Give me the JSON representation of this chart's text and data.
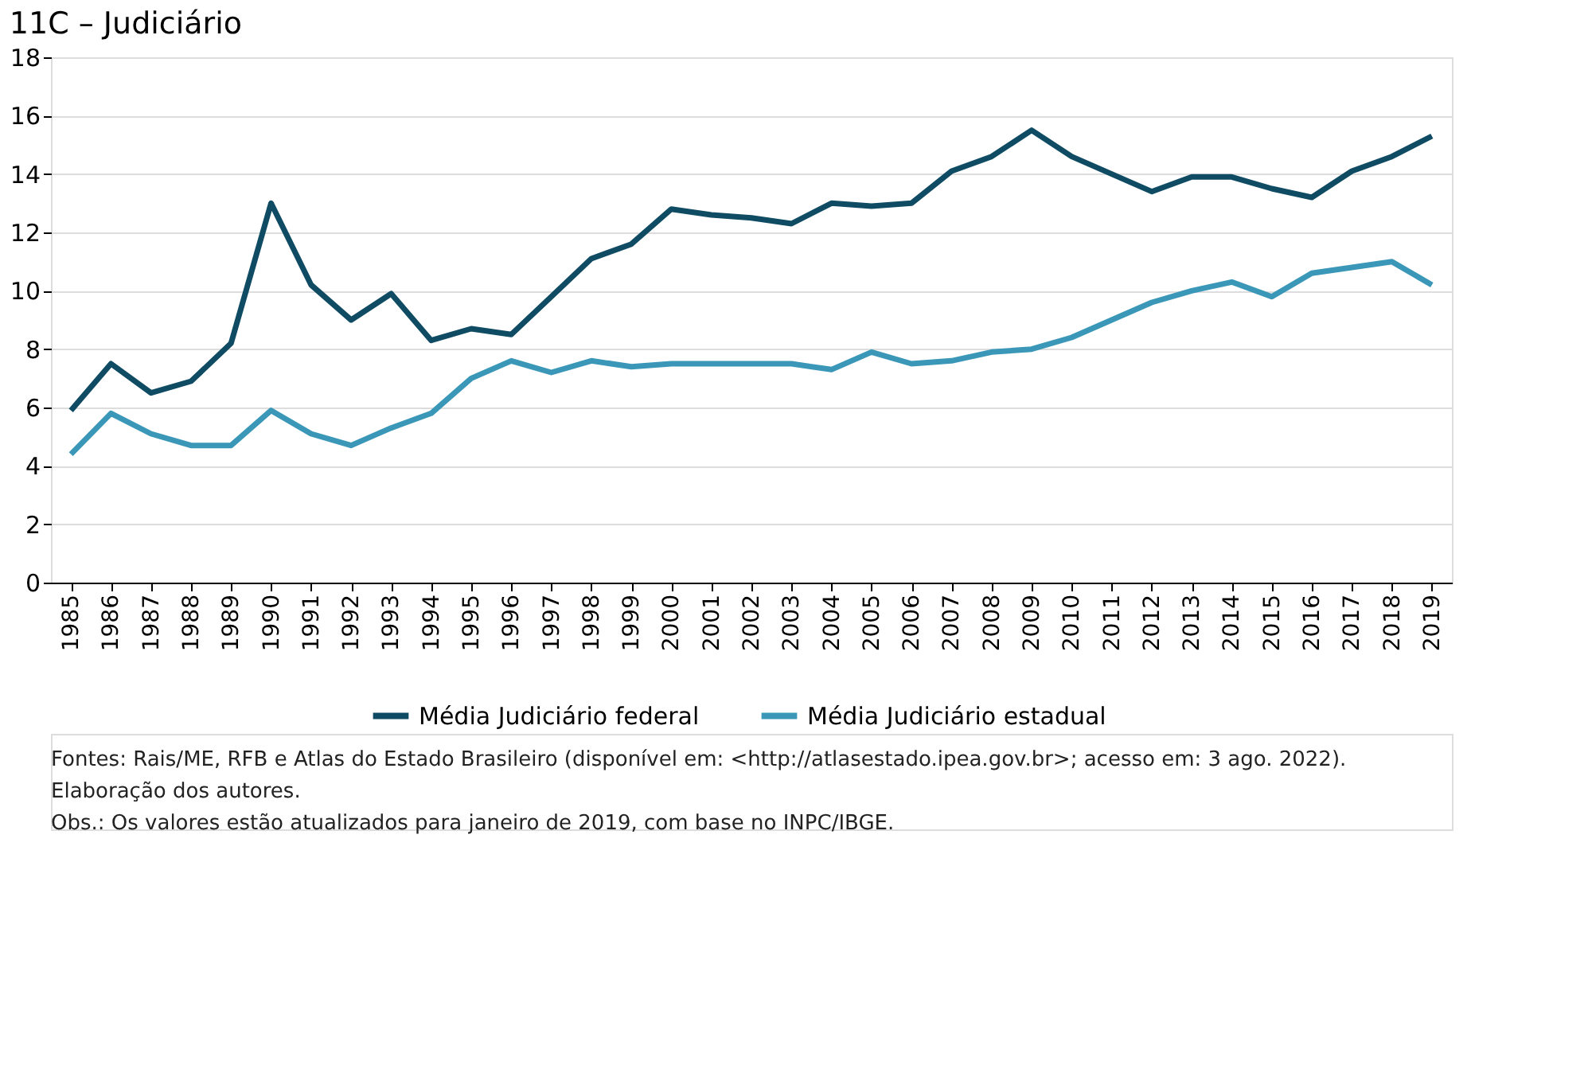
{
  "chart_data": {
    "type": "line",
    "title": "11C – Judiciário",
    "categories": [
      "1985",
      "1986",
      "1987",
      "1988",
      "1989",
      "1990",
      "1991",
      "1992",
      "1993",
      "1994",
      "1995",
      "1996",
      "1997",
      "1998",
      "1999",
      "2000",
      "2001",
      "2002",
      "2003",
      "2004",
      "2005",
      "2006",
      "2007",
      "2008",
      "2009",
      "2010",
      "2011",
      "2012",
      "2013",
      "2014",
      "2015",
      "2016",
      "2017",
      "2018",
      "2019"
    ],
    "series": [
      {
        "name": "Média Judiciário federal",
        "color": "#0f4c64",
        "values": [
          5.9,
          7.5,
          6.5,
          6.9,
          8.2,
          13.0,
          10.2,
          9.0,
          9.9,
          8.3,
          8.7,
          8.5,
          9.8,
          11.1,
          11.6,
          12.8,
          12.6,
          12.5,
          12.3,
          13.0,
          12.9,
          13.0,
          14.1,
          14.6,
          15.5,
          14.6,
          14.0,
          13.4,
          13.9,
          13.9,
          13.5,
          13.2,
          14.1,
          14.6,
          15.3
        ]
      },
      {
        "name": "Média Judiciário estadual",
        "color": "#3a97b8",
        "values": [
          4.4,
          5.8,
          5.1,
          4.7,
          4.7,
          5.9,
          5.1,
          4.7,
          5.3,
          5.8,
          7.0,
          7.6,
          7.2,
          7.6,
          7.4,
          7.5,
          7.5,
          7.5,
          7.5,
          7.3,
          7.9,
          7.5,
          7.6,
          7.9,
          8.0,
          8.4,
          9.0,
          9.6,
          10.0,
          10.3,
          9.8,
          10.6,
          10.8,
          11.0,
          10.2
        ]
      }
    ],
    "ylim": [
      0,
      18
    ],
    "yticks": [
      0,
      2,
      4,
      6,
      8,
      10,
      12,
      14,
      16,
      18
    ],
    "grid": "y",
    "legend": "bottom",
    "marker": "none",
    "line_style": "solid",
    "annotations": [
      "Fontes: Rais/ME, RFB e Atlas do Estado Brasileiro (disponível em: <http://atlasestado.ipea.gov.br>; acesso em: 3 ago. 2022).",
      "Elaboração dos autores.",
      "Obs.: Os valores estão atualizados para janeiro de 2019, com base no INPC/IBGE."
    ]
  }
}
